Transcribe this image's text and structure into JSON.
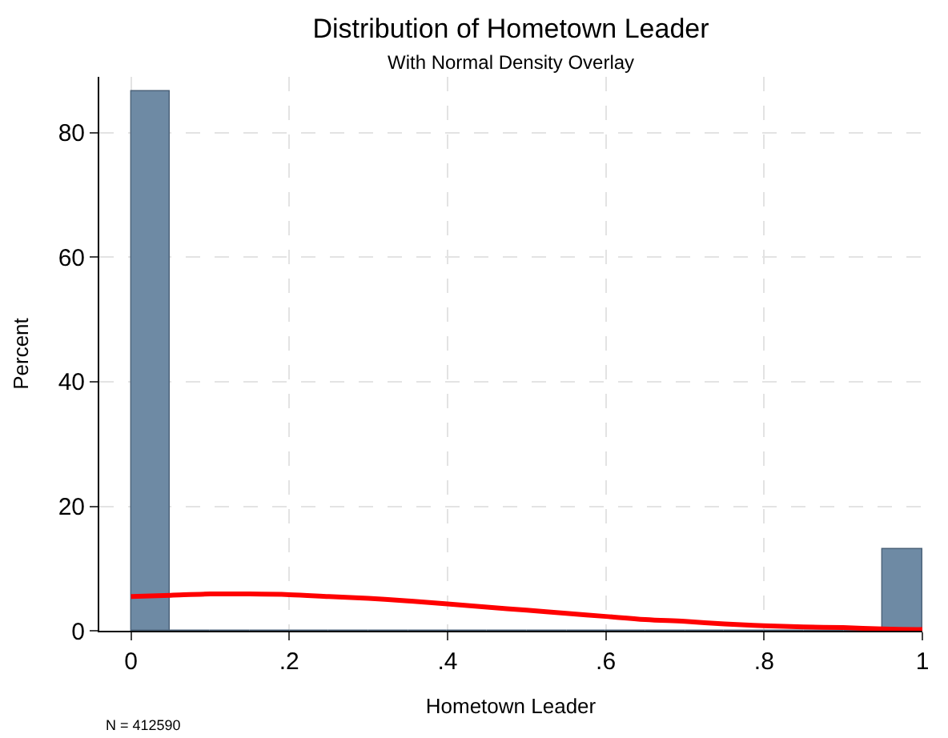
{
  "chart_data": {
    "type": "histogram",
    "title": "Distribution of Hometown Leader",
    "subtitle": "With Normal Density Overlay",
    "xlabel": "Hometown Leader",
    "ylabel": "Percent",
    "bins": [
      0,
      0.05,
      0.1,
      0.15,
      0.2,
      0.25,
      0.3,
      0.35,
      0.4,
      0.45,
      0.5,
      0.55,
      0.6,
      0.65,
      0.7,
      0.75,
      0.8,
      0.85,
      0.9,
      0.95,
      1
    ],
    "values": [
      86.8,
      0,
      0,
      0,
      0,
      0,
      0,
      0,
      0,
      0,
      0,
      0,
      0,
      0,
      0,
      0,
      0,
      0,
      0,
      13.2
    ],
    "color": "#6e8aa4",
    "series": [
      {
        "type": "line",
        "color": "#ff0000",
        "x": [
          0,
          0.05,
          0.1,
          0.15,
          0.2,
          0.25,
          0.3,
          0.35,
          0.4,
          0.45,
          0.5,
          0.55,
          0.6,
          0.65,
          0.7,
          0.75,
          0.8,
          0.85,
          0.9,
          0.95,
          1
        ],
        "values": [
          5.5,
          5.7,
          5.9,
          5.9,
          5.8,
          5.5,
          5.2,
          4.8,
          4.3,
          3.8,
          3.3,
          2.8,
          2.3,
          1.8,
          1.5,
          1.1,
          0.8,
          0.6,
          0.5,
          0.3,
          0.2
        ]
      }
    ],
    "xlim": [
      -0.04,
      1
    ],
    "xticks": [
      0,
      {
        "value": 0.2,
        "label": ".2"
      },
      {
        "value": 0.4,
        "label": ".4"
      },
      {
        "value": 0.6,
        "label": ".6"
      },
      {
        "value": 0.8,
        "label": ".8"
      },
      1
    ],
    "ylim": [
      0,
      89
    ],
    "yticks": [
      0,
      20,
      40,
      60,
      80
    ],
    "grid": true,
    "line_style": "solid",
    "annotations": [
      "N = 412590"
    ]
  }
}
